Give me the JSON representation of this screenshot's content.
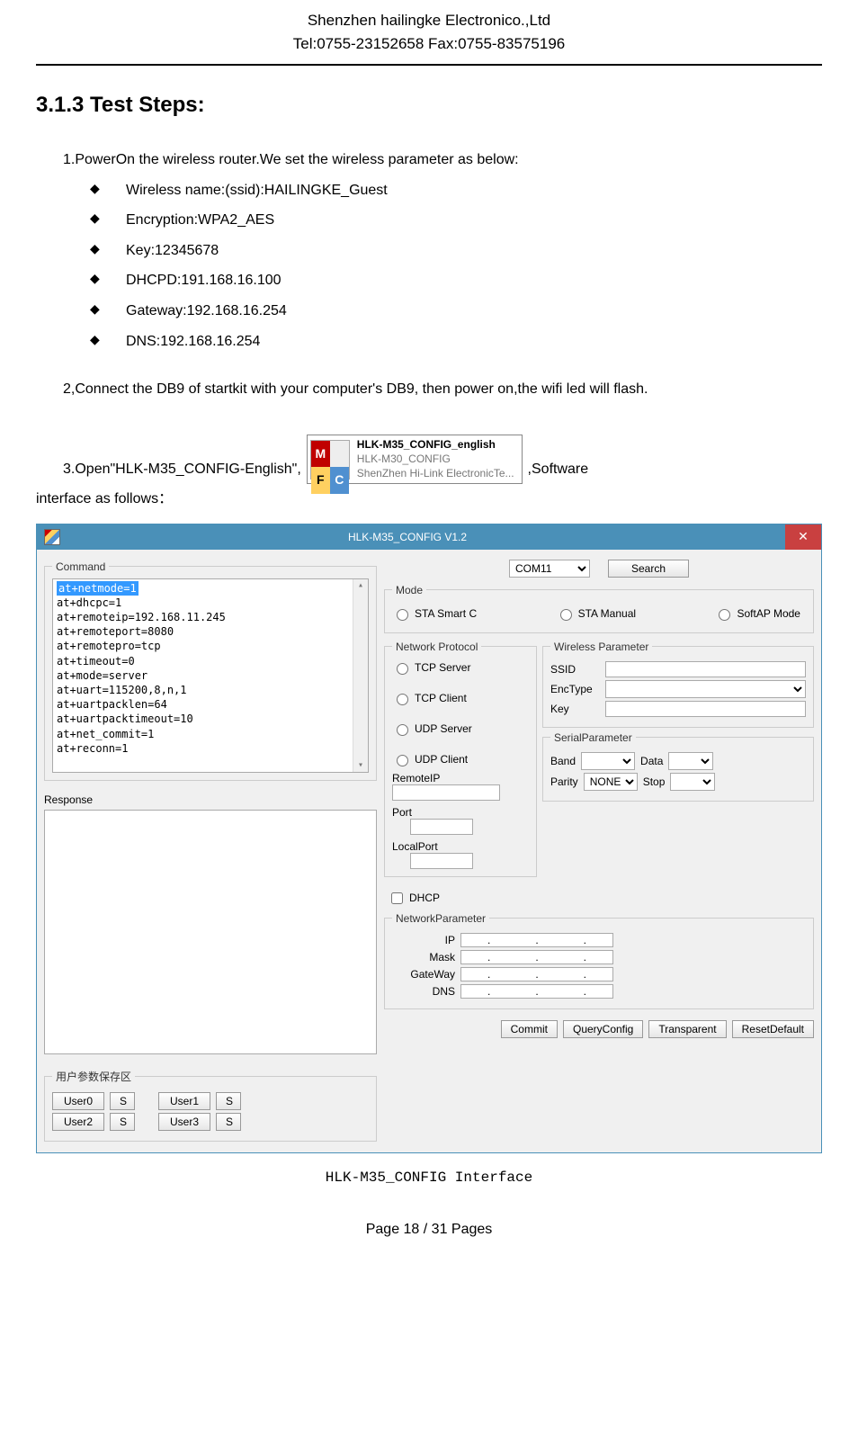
{
  "header": {
    "company": "Shenzhen hailingke Electronico.,Ltd",
    "contact": "Tel:0755-23152658 Fax:0755-83575196"
  },
  "section_heading": "3.1.3 Test Steps:",
  "step1_intro": "1.PowerOn the wireless router.We set the wireless parameter as below:",
  "bullets": [
    "Wireless name:(ssid):HAILINGKE_Guest",
    "Encryption:WPA2_AES",
    "Key:12345678",
    "DHCPD:191.168.16.100",
    "Gateway:192.168.16.254",
    "DNS:192.168.16.254"
  ],
  "step2": "2,Connect the DB9 of startkit with your computer's DB9, then power on,the wifi led will flash.",
  "step3_a": "3.Open\"HLK-M35_CONFIG-English\",",
  "step3_b": ",Software",
  "step3_c": "interface as follows：",
  "mfc_icon": {
    "line1": "HLK-M35_CONFIG_english",
    "line2": "HLK-M30_CONFIG",
    "line3": "ShenZhen Hi-Link ElectronicTe..."
  },
  "app": {
    "title": "HLK-M35_CONFIG V1.2",
    "close_glyph": "✕",
    "left": {
      "command_legend": "Command",
      "command_lines": [
        "at+netmode=1",
        "at+dhcpc=1",
        "at+remoteip=192.168.11.245",
        "at+remoteport=8080",
        "at+remotepro=tcp",
        "at+timeout=0",
        "at+mode=server",
        "at+uart=115200,8,n,1",
        "at+uartpacklen=64",
        "at+uartpacktimeout=10",
        "at+net_commit=1",
        "at+reconn=1"
      ],
      "response_label": "Response",
      "user_legend": "用户参数保存区",
      "user_btns": [
        "User0",
        "S",
        "User1",
        "S",
        "User2",
        "S",
        "User3",
        "S"
      ]
    },
    "right": {
      "com_value": "COM11",
      "search_btn": "Search",
      "mode_legend": "Mode",
      "mode_opts": [
        "STA Smart C",
        "STA Manual",
        "SoftAP Mode"
      ],
      "netproto_legend": "Network Protocol",
      "netproto_opts": [
        "TCP Server",
        "TCP Client",
        "UDP Server",
        "UDP Client"
      ],
      "remoteip_label": "RemoteIP",
      "port_label": "Port",
      "localport_label": "LocalPort",
      "wireless_legend": "Wireless Parameter",
      "ssid_label": "SSID",
      "enctype_label": "EncType",
      "key_label": "Key",
      "serial_legend": "SerialParameter",
      "band_label": "Band",
      "data_label": "Data",
      "parity_label": "Parity",
      "parity_value": "NONE",
      "stop_label": "Stop",
      "dhcp_label": "DHCP",
      "netparam_legend": "NetworkParameter",
      "ip_label": "IP",
      "mask_label": "Mask",
      "gateway_label": "GateWay",
      "dns_label": "DNS",
      "bottom_btns": [
        "Commit",
        "QueryConfig",
        "Transparent",
        "ResetDefault"
      ]
    }
  },
  "caption": "HLK-M35_CONFIG Interface",
  "footer": "Page 18 / 31 Pages"
}
